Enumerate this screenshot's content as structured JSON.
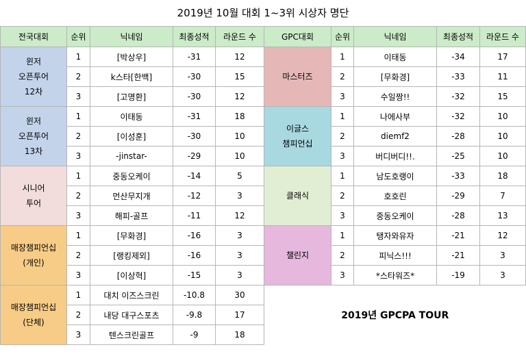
{
  "title": "2019년 10월 대회 1~3위 시상자 명단",
  "headers": {
    "left": [
      "전국대회",
      "순위",
      "닉네임",
      "최종성적",
      "라운드 수"
    ],
    "right": [
      "GPC대회",
      "순위",
      "닉네임",
      "최종성적",
      "라운드 수"
    ]
  },
  "left_groups": [
    {
      "name_lines": [
        "윈저",
        "오픈투어",
        "12차"
      ],
      "color": "#c2d3ea",
      "rows": [
        [
          "1",
          "[박상우]",
          "-31",
          "12"
        ],
        [
          "2",
          "k스타[한백]",
          "-30",
          "15"
        ],
        [
          "3",
          "[고명환]",
          "-30",
          "12"
        ]
      ]
    },
    {
      "name_lines": [
        "윈저",
        "오픈투어",
        "13차"
      ],
      "color": "#c2d3ea",
      "rows": [
        [
          "1",
          "이태동",
          "-31",
          "18"
        ],
        [
          "2",
          "[이성훈]",
          "-30",
          "10"
        ],
        [
          "3",
          "-jinstar-",
          "-29",
          "10"
        ]
      ]
    },
    {
      "name_lines": [
        "시니어",
        "투어"
      ],
      "color": "#f2dcdc",
      "rows": [
        [
          "1",
          "중동오케이",
          "-14",
          "5"
        ],
        [
          "2",
          "먼산무지개",
          "-12",
          "3"
        ],
        [
          "3",
          "해피-골프",
          "-11",
          "12"
        ]
      ]
    },
    {
      "name_lines": [
        "매장챔피언십",
        "(개인)"
      ],
      "color": "#f7cc86",
      "rows": [
        [
          "1",
          "[무화경]",
          "-16",
          "3"
        ],
        [
          "2",
          "[랭킹제외]",
          "-16",
          "3"
        ],
        [
          "3",
          "[이상혁]",
          "-15",
          "3"
        ]
      ]
    },
    {
      "name_lines": [
        "매장챔피언십",
        "(단체)"
      ],
      "color": "#f7cc86",
      "rows": [
        [
          "1",
          "대치 이즈스크린",
          "-10.8",
          "30"
        ],
        [
          "2",
          "내당 대구스포츠",
          "-9.8",
          "17"
        ],
        [
          "3",
          "텐스크린골프",
          "-9",
          "18"
        ]
      ]
    }
  ],
  "right_groups": [
    {
      "name_lines": [
        "마스터즈"
      ],
      "color": "#e5b8b7",
      "rows": [
        [
          "1",
          "이태동",
          "-34",
          "17"
        ],
        [
          "2",
          "[무화경]",
          "-33",
          "11"
        ],
        [
          "3",
          "수일짱!!",
          "-32",
          "15"
        ]
      ]
    },
    {
      "name_lines": [
        "이글스",
        "챔피언십"
      ],
      "color": "#a8d8e0",
      "rows": [
        [
          "1",
          "나에사부",
          "-32",
          "10"
        ],
        [
          "2",
          "diemf2",
          "-28",
          "10"
        ],
        [
          "3",
          "버디버디!!.",
          "-25",
          "10"
        ]
      ]
    },
    {
      "name_lines": [
        "클래식"
      ],
      "color": "#e1eed4",
      "rows": [
        [
          "1",
          "남도호랭이",
          "-33",
          "18"
        ],
        [
          "2",
          "호호린",
          "-29",
          "7"
        ],
        [
          "3",
          "중동오케이",
          "-28",
          "13"
        ]
      ]
    },
    {
      "name_lines": [
        "챌린지"
      ],
      "color": "#e6b8dd",
      "rows": [
        [
          "1",
          "탱자와유자",
          "-21",
          "12"
        ],
        [
          "2",
          "피닉스!!!",
          "-21",
          "3"
        ],
        [
          "3",
          "*스타워즈*",
          "-19",
          "3"
        ]
      ]
    }
  ],
  "footer": "2019년 GPCPA TOUR"
}
